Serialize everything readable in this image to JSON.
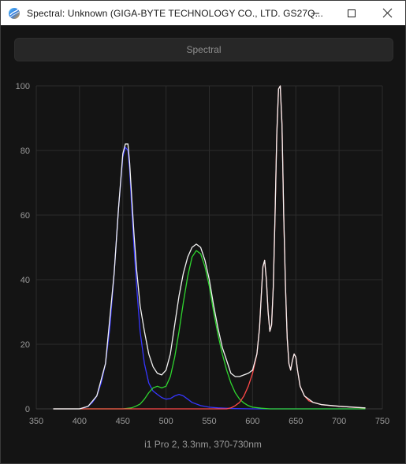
{
  "window": {
    "title": "Spectral: Unknown (GIGA-BYTE TECHNOLOGY CO., LTD. GS27Q..."
  },
  "header": {
    "button_label": "Spectral"
  },
  "caption": "i1 Pro 2, 3.3nm, 370-730nm",
  "colors": {
    "background": "#141414",
    "grid": "#2c2c2c",
    "tick_text": "#9a9a9a",
    "blue": "#3636ff",
    "green": "#2fd62f",
    "red": "#ff4848",
    "total": "#f2f2f2"
  },
  "chart_data": {
    "type": "line",
    "title": "",
    "xlabel": "",
    "ylabel": "",
    "xlim": [
      350,
      750
    ],
    "ylim": [
      0,
      100
    ],
    "x_ticks": [
      350,
      400,
      450,
      500,
      550,
      600,
      650,
      700,
      750
    ],
    "y_ticks": [
      0,
      20,
      40,
      60,
      80,
      100
    ],
    "grid": true,
    "series": [
      {
        "name": "",
        "color_key": "blue",
        "x": [
          370,
          380,
          390,
          400,
          405,
          410,
          415,
          420,
          425,
          430,
          435,
          440,
          445,
          450,
          453,
          456,
          458,
          460,
          463,
          466,
          470,
          475,
          480,
          485,
          490,
          495,
          500,
          505,
          510,
          515,
          520,
          525,
          530,
          540,
          550,
          560,
          580,
          600,
          650,
          700,
          730
        ],
        "y": [
          0,
          0,
          0,
          0,
          0.3,
          0.8,
          2,
          4,
          8,
          14,
          25,
          42,
          62,
          78,
          81,
          80,
          74,
          64,
          50,
          38,
          24,
          14,
          8,
          5.5,
          4.5,
          3.5,
          3,
          3.2,
          4,
          4.5,
          4,
          3,
          2,
          1,
          0.5,
          0.3,
          0.1,
          0,
          0,
          0,
          0
        ]
      },
      {
        "name": "",
        "color_key": "green",
        "x": [
          370,
          450,
          460,
          465,
          470,
          475,
          480,
          485,
          490,
          495,
          500,
          505,
          510,
          515,
          520,
          525,
          530,
          535,
          540,
          545,
          550,
          555,
          560,
          565,
          570,
          575,
          580,
          585,
          590,
          595,
          600,
          610,
          620,
          650,
          700,
          730
        ],
        "y": [
          0,
          0,
          0.3,
          0.8,
          1.5,
          3,
          5,
          6.5,
          7,
          6.5,
          7,
          10,
          16,
          24,
          33,
          41,
          47,
          49,
          48,
          44,
          38,
          30,
          23,
          17,
          12,
          8,
          5,
          3,
          1.8,
          1,
          0.5,
          0.2,
          0,
          0,
          0,
          0
        ]
      },
      {
        "name": "",
        "color_key": "red",
        "x": [
          370,
          570,
          575,
          580,
          585,
          590,
          595,
          600,
          605,
          608,
          610,
          612,
          614,
          616,
          618,
          620,
          622,
          624,
          626,
          628,
          630,
          632,
          634,
          636,
          638,
          640,
          642,
          644,
          646,
          648,
          650,
          652,
          655,
          660,
          665,
          670,
          680,
          690,
          700,
          710,
          720,
          730
        ],
        "y": [
          0,
          0,
          0.3,
          1,
          2,
          4,
          7,
          11,
          17,
          25,
          35,
          44,
          46,
          40,
          30,
          24,
          26,
          38,
          60,
          85,
          99,
          100,
          88,
          60,
          38,
          22,
          14,
          12,
          15,
          17,
          16,
          12,
          7,
          4,
          2.5,
          2,
          1.3,
          1,
          0.8,
          0.6,
          0.4,
          0.3
        ]
      },
      {
        "name": "",
        "color_key": "total",
        "x": [
          370,
          400,
          410,
          420,
          430,
          440,
          445,
          450,
          453,
          456,
          458,
          460,
          463,
          466,
          470,
          475,
          480,
          485,
          490,
          495,
          500,
          505,
          510,
          515,
          520,
          525,
          530,
          535,
          540,
          545,
          550,
          555,
          560,
          565,
          570,
          575,
          580,
          585,
          590,
          595,
          600,
          605,
          608,
          610,
          612,
          614,
          616,
          618,
          620,
          622,
          624,
          626,
          628,
          630,
          632,
          634,
          636,
          638,
          640,
          642,
          644,
          646,
          648,
          650,
          652,
          655,
          660,
          670,
          680,
          700,
          730
        ],
        "y": [
          0,
          0,
          0.8,
          4,
          14,
          42,
          62,
          79,
          82,
          82,
          76,
          67,
          54,
          43,
          32,
          24,
          17,
          13,
          11,
          10.5,
          12,
          17,
          26,
          35,
          42,
          47,
          50,
          51,
          50,
          46,
          40,
          32,
          25,
          19,
          15,
          11,
          10,
          10,
          10.5,
          11,
          12,
          17,
          25,
          35,
          44,
          46,
          40,
          30,
          24,
          26,
          38,
          60,
          85,
          99,
          100,
          88,
          60,
          38,
          22,
          14,
          12,
          15,
          17,
          16,
          12,
          7,
          4,
          2,
          1.3,
          0.8,
          0.3
        ]
      }
    ]
  }
}
